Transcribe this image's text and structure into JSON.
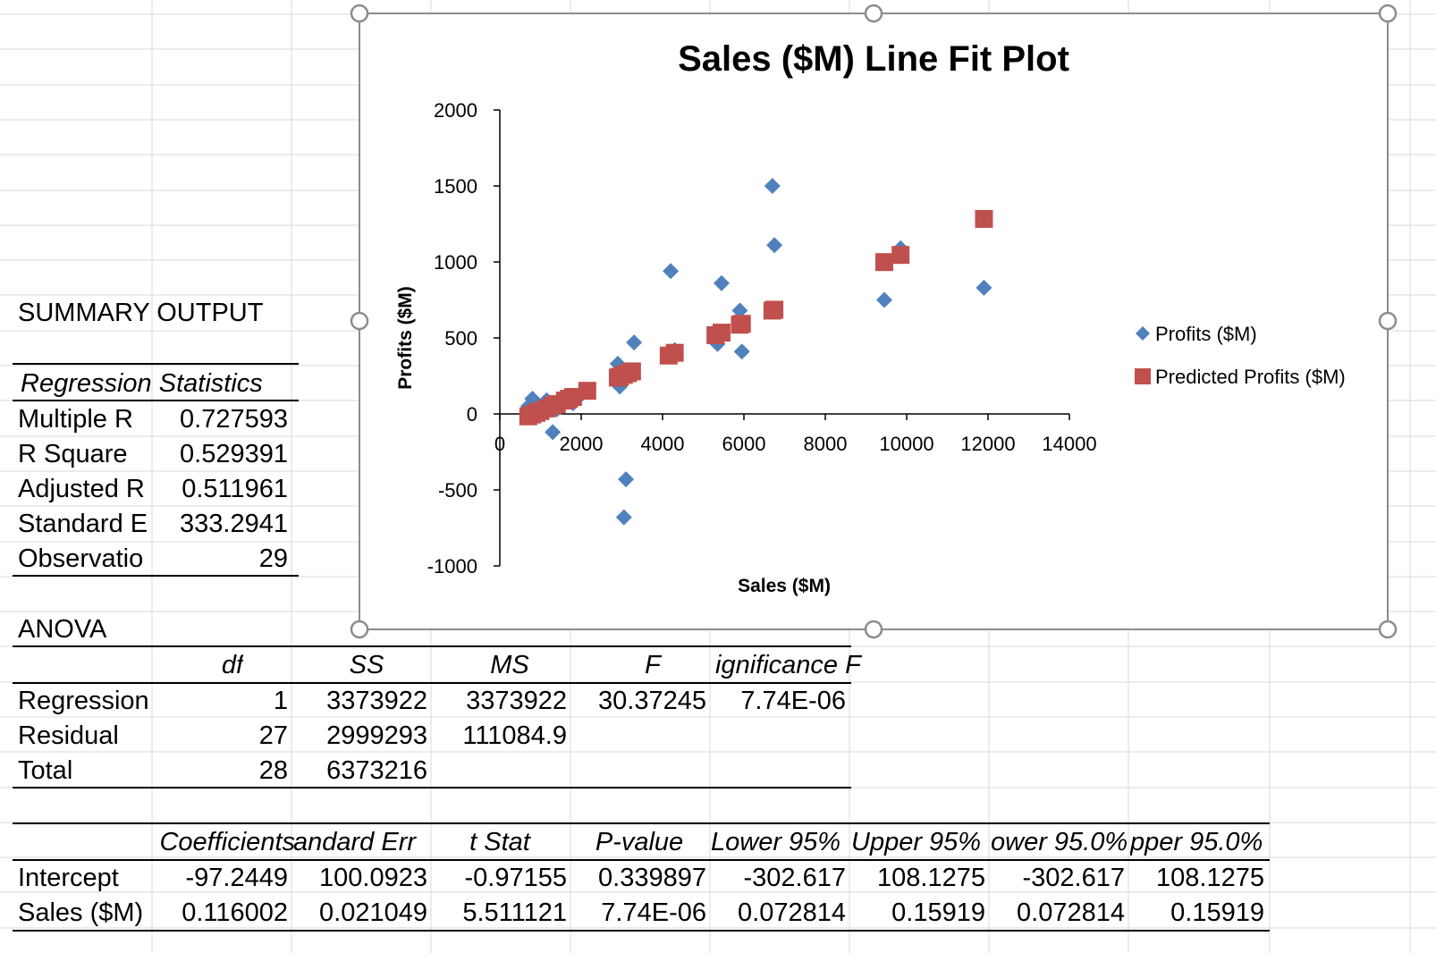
{
  "summary": {
    "title": "SUMMARY OUTPUT",
    "regression_header": "Regression Statistics",
    "stats": [
      {
        "label": "Multiple R",
        "value": "0.727593"
      },
      {
        "label": "R Square",
        "value": "0.529391"
      },
      {
        "label": "Adjusted R",
        "value": "0.511961"
      },
      {
        "label": "Standard E",
        "value": "333.2941"
      },
      {
        "label": "Observatio",
        "value": "29"
      }
    ]
  },
  "anova": {
    "title": "ANOVA",
    "headers": [
      "df",
      "SS",
      "MS",
      "F",
      "ignificance F"
    ],
    "rows": [
      {
        "label": "Regression",
        "cells": [
          "1",
          "3373922",
          "3373922",
          "30.37245",
          "7.74E-06"
        ]
      },
      {
        "label": "Residual",
        "cells": [
          "27",
          "2999293",
          "111084.9",
          "",
          ""
        ]
      },
      {
        "label": "Total",
        "cells": [
          "28",
          "6373216",
          "",
          "",
          ""
        ]
      }
    ]
  },
  "coefficients": {
    "headers": [
      "Coefficients",
      "andard Err",
      "t Stat",
      "P-value",
      "Lower 95%",
      "Upper 95%",
      "ower 95.0%",
      "pper 95.0%"
    ],
    "rows": [
      {
        "label": "Intercept",
        "cells": [
          "-97.2449",
          "100.0923",
          "-0.97155",
          "0.339897",
          "-302.617",
          "108.1275",
          "-302.617",
          "108.1275"
        ]
      },
      {
        "label": "Sales ($M)",
        "cells": [
          "0.116002",
          "0.021049",
          "5.511121",
          "7.74E-06",
          "0.072814",
          "0.15919",
          "0.072814",
          "0.15919"
        ]
      }
    ]
  },
  "chart_data": {
    "type": "scatter",
    "title": "Sales ($M) Line Fit  Plot",
    "xlabel": "Sales ($M)",
    "ylabel": "Profits ($M)",
    "xlim": [
      0,
      14000
    ],
    "ylim": [
      -1000,
      2000
    ],
    "xticks": [
      "0",
      "2000",
      "4000",
      "6000",
      "8000",
      "10000",
      "12000",
      "14000"
    ],
    "yticks": [
      "2000",
      "1500",
      "1000",
      "500",
      "0",
      "-500",
      "-1000"
    ],
    "legend_position": "right",
    "grid": false,
    "series": [
      {
        "name": "Profits ($M)",
        "color": "#4F81BD",
        "marker": "diamond",
        "x": [
          800,
          700,
          750,
          1150,
          1300,
          1400,
          1600,
          1800,
          1900,
          2900,
          2950,
          3000,
          3050,
          3100,
          3200,
          3300,
          2950,
          3100,
          4200,
          4300,
          5350,
          5450,
          5900,
          5950,
          6700,
          6750,
          9450,
          9850,
          11900
        ],
        "y": [
          100,
          50,
          20,
          90,
          -120,
          30,
          100,
          70,
          100,
          330,
          180,
          300,
          -680,
          -430,
          270,
          470,
          200,
          250,
          940,
          420,
          460,
          860,
          680,
          410,
          1500,
          1110,
          750,
          1090,
          830
        ]
      },
      {
        "name": "Predicted Profits ($M)",
        "color": "#C0504D",
        "marker": "square",
        "x": [
          700,
          800,
          900,
          1000,
          1150,
          1300,
          1400,
          1600,
          1700,
          1800,
          2150,
          2900,
          2950,
          3050,
          3150,
          3250,
          4150,
          4300,
          5300,
          5450,
          5900,
          5950,
          6700,
          6750,
          9450,
          9850,
          11900
        ],
        "y": [
          -16,
          -4,
          7,
          19,
          36,
          54,
          65,
          88,
          100,
          112,
          152,
          239,
          245,
          257,
          268,
          280,
          384,
          402,
          518,
          535,
          587,
          593,
          680,
          686,
          999,
          1046,
          1283
        ]
      }
    ]
  }
}
